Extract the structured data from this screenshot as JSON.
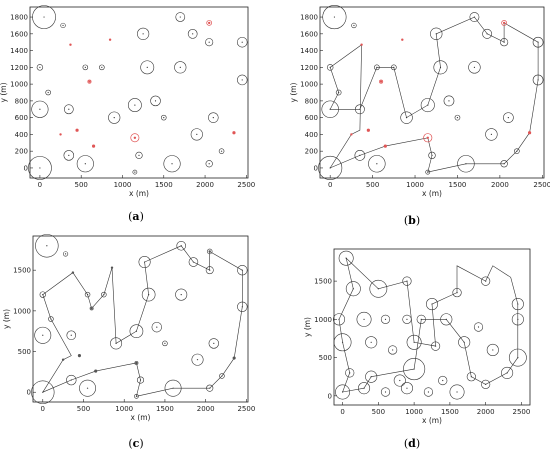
{
  "chart_data": [
    {
      "type": "scatter",
      "panel": "(a)",
      "panel_letter": "a",
      "xlabel": "x (m)",
      "ylabel": "y (m)",
      "xlim": [
        -120,
        2520
      ],
      "ylim": [
        -120,
        1920
      ],
      "xticks": [
        0,
        500,
        1000,
        1500,
        2000,
        2500
      ],
      "yticks": [
        0,
        200,
        400,
        600,
        800,
        1000,
        1200,
        1400,
        1600,
        1800
      ],
      "grid": false,
      "circle_color": "#333333",
      "highlight_color": "#e05555",
      "circles": [
        [
          50,
          1800,
          140
        ],
        [
          280,
          1700,
          28
        ],
        [
          1700,
          1800,
          55
        ],
        [
          1250,
          1600,
          70
        ],
        [
          1850,
          1600,
          55
        ],
        [
          2050,
          1500,
          45
        ],
        [
          2450,
          1500,
          60
        ],
        [
          0,
          1200,
          35
        ],
        [
          550,
          1200,
          30
        ],
        [
          750,
          1200,
          30
        ],
        [
          1300,
          1200,
          80
        ],
        [
          1700,
          1200,
          70
        ],
        [
          2450,
          1050,
          60
        ],
        [
          100,
          900,
          30
        ],
        [
          0,
          700,
          100
        ],
        [
          350,
          700,
          55
        ],
        [
          1150,
          750,
          80
        ],
        [
          1400,
          800,
          60
        ],
        [
          900,
          600,
          70
        ],
        [
          2100,
          600,
          60
        ],
        [
          1500,
          600,
          30
        ],
        [
          1900,
          400,
          70
        ],
        [
          350,
          150,
          60
        ],
        [
          1200,
          150,
          40
        ],
        [
          1600,
          50,
          100
        ],
        [
          0,
          0,
          140
        ],
        [
          2050,
          50,
          40
        ],
        [
          2200,
          200,
          30
        ],
        [
          1150,
          -50,
          25
        ],
        [
          550,
          50,
          100
        ]
      ],
      "highlights": [
        [
          2050,
          1730,
          30
        ],
        [
          370,
          1470,
          0
        ],
        [
          850,
          1530,
          0
        ],
        [
          600,
          1030,
          20
        ],
        [
          1150,
          360,
          50
        ],
        [
          450,
          450,
          15
        ],
        [
          650,
          260,
          15
        ],
        [
          2350,
          420,
          15
        ],
        [
          250,
          400,
          0
        ]
      ]
    },
    {
      "type": "line",
      "panel": "(b)",
      "panel_letter": "b",
      "xlabel": "x (m)",
      "ylabel": "y (m)",
      "xlim": [
        -120,
        2520
      ],
      "ylim": [
        -120,
        1920
      ],
      "xticks": [
        0,
        500,
        1000,
        1500,
        2000,
        2500
      ],
      "yticks": [
        0,
        200,
        400,
        600,
        800,
        1000,
        1200,
        1400,
        1600,
        1800
      ],
      "grid": false,
      "circle_color": "#333333",
      "highlight_color": "#e05555",
      "line_color": "#333333",
      "circles": [
        [
          50,
          1800,
          140
        ],
        [
          280,
          1700,
          28
        ],
        [
          1700,
          1800,
          55
        ],
        [
          1250,
          1600,
          70
        ],
        [
          1850,
          1600,
          55
        ],
        [
          2050,
          1500,
          45
        ],
        [
          2450,
          1500,
          60
        ],
        [
          0,
          1200,
          35
        ],
        [
          550,
          1200,
          30
        ],
        [
          750,
          1200,
          30
        ],
        [
          1300,
          1200,
          80
        ],
        [
          1700,
          1200,
          70
        ],
        [
          2450,
          1050,
          60
        ],
        [
          100,
          900,
          30
        ],
        [
          0,
          700,
          100
        ],
        [
          350,
          700,
          55
        ],
        [
          1150,
          750,
          80
        ],
        [
          1400,
          800,
          60
        ],
        [
          900,
          600,
          70
        ],
        [
          2100,
          600,
          60
        ],
        [
          1500,
          600,
          30
        ],
        [
          1900,
          400,
          70
        ],
        [
          350,
          150,
          60
        ],
        [
          1200,
          150,
          40
        ],
        [
          1600,
          50,
          100
        ],
        [
          0,
          0,
          140
        ],
        [
          2050,
          50,
          40
        ],
        [
          2200,
          200,
          30
        ],
        [
          1150,
          -50,
          25
        ],
        [
          550,
          50,
          100
        ]
      ],
      "highlights": [
        [
          2050,
          1730,
          30
        ],
        [
          370,
          1470,
          0
        ],
        [
          850,
          1530,
          0
        ],
        [
          600,
          1030,
          20
        ],
        [
          1150,
          360,
          50
        ],
        [
          450,
          450,
          15
        ],
        [
          650,
          260,
          15
        ],
        [
          2350,
          420,
          15
        ],
        [
          250,
          400,
          0
        ]
      ],
      "path": [
        [
          0,
          0
        ],
        [
          250,
          400
        ],
        [
          350,
          450
        ],
        [
          370,
          1470
        ],
        [
          0,
          1200
        ],
        [
          100,
          900
        ],
        [
          0,
          700
        ],
        [
          350,
          700
        ],
        [
          550,
          1200
        ],
        [
          750,
          1200
        ],
        [
          900,
          600
        ],
        [
          1150,
          750
        ],
        [
          1300,
          1200
        ],
        [
          1250,
          1600
        ],
        [
          1700,
          1800
        ],
        [
          1850,
          1600
        ],
        [
          2050,
          1500
        ],
        [
          2050,
          1730
        ],
        [
          2450,
          1500
        ],
        [
          2450,
          1050
        ],
        [
          2350,
          420
        ],
        [
          2200,
          200
        ],
        [
          2050,
          50
        ],
        [
          1600,
          50
        ],
        [
          1150,
          -50
        ],
        [
          1200,
          150
        ],
        [
          1150,
          360
        ],
        [
          650,
          260
        ],
        [
          350,
          150
        ],
        [
          0,
          0
        ]
      ]
    },
    {
      "type": "line",
      "panel": "(c)",
      "panel_letter": "c",
      "xlabel": "x (m)",
      "ylabel": "y (m)",
      "xlim": [
        -120,
        2520
      ],
      "ylim": [
        -120,
        1920
      ],
      "xticks": [
        0,
        500,
        1000,
        1500,
        2000,
        2500
      ],
      "yticks": [
        0,
        500,
        1000,
        1500
      ],
      "grid": false,
      "circle_color": "#333333",
      "highlight_color": "#555555",
      "line_color": "#333333",
      "circles": [
        [
          50,
          1800,
          140
        ],
        [
          280,
          1700,
          28
        ],
        [
          1700,
          1800,
          55
        ],
        [
          1250,
          1600,
          70
        ],
        [
          1850,
          1600,
          55
        ],
        [
          2050,
          1500,
          45
        ],
        [
          2450,
          1500,
          60
        ],
        [
          0,
          1200,
          35
        ],
        [
          550,
          1200,
          30
        ],
        [
          750,
          1200,
          30
        ],
        [
          1300,
          1200,
          80
        ],
        [
          1700,
          1200,
          70
        ],
        [
          2450,
          1050,
          60
        ],
        [
          100,
          900,
          30
        ],
        [
          0,
          700,
          100
        ],
        [
          350,
          700,
          55
        ],
        [
          1150,
          750,
          80
        ],
        [
          1400,
          800,
          60
        ],
        [
          900,
          600,
          70
        ],
        [
          2100,
          600,
          60
        ],
        [
          1500,
          600,
          30
        ],
        [
          1900,
          400,
          70
        ],
        [
          350,
          150,
          60
        ],
        [
          1200,
          150,
          40
        ],
        [
          1600,
          50,
          100
        ],
        [
          0,
          0,
          140
        ],
        [
          2050,
          50,
          40
        ],
        [
          2200,
          200,
          30
        ],
        [
          1150,
          -50,
          25
        ],
        [
          550,
          50,
          100
        ]
      ],
      "highlights": [
        [
          2050,
          1730,
          30
        ],
        [
          370,
          1470,
          0
        ],
        [
          850,
          1530,
          0
        ],
        [
          600,
          1030,
          20
        ],
        [
          1150,
          360,
          20
        ],
        [
          450,
          450,
          15
        ],
        [
          650,
          260,
          15
        ],
        [
          2350,
          420,
          15
        ],
        [
          250,
          400,
          0
        ]
      ],
      "path": [
        [
          0,
          0
        ],
        [
          250,
          400
        ],
        [
          350,
          450
        ],
        [
          100,
          900
        ],
        [
          0,
          1200
        ],
        [
          370,
          1470
        ],
        [
          550,
          1200
        ],
        [
          600,
          1030
        ],
        [
          750,
          1200
        ],
        [
          850,
          1530
        ],
        [
          900,
          600
        ],
        [
          1150,
          750
        ],
        [
          1300,
          1200
        ],
        [
          1250,
          1600
        ],
        [
          1700,
          1800
        ],
        [
          1850,
          1600
        ],
        [
          2050,
          1500
        ],
        [
          2050,
          1730
        ],
        [
          2450,
          1500
        ],
        [
          2450,
          1050
        ],
        [
          2350,
          420
        ],
        [
          2200,
          200
        ],
        [
          2050,
          50
        ],
        [
          1600,
          50
        ],
        [
          1150,
          -50
        ],
        [
          1200,
          150
        ],
        [
          1150,
          360
        ],
        [
          650,
          260
        ],
        [
          350,
          150
        ],
        [
          0,
          0
        ]
      ]
    },
    {
      "type": "line",
      "panel": "(d)",
      "panel_letter": "d",
      "xlabel": "x (m)",
      "ylabel": "y (m)",
      "xlim": [
        -120,
        2620
      ],
      "ylim": [
        -120,
        1920
      ],
      "xticks": [
        0,
        500,
        1000,
        1500,
        2000,
        2500
      ],
      "yticks": [
        0,
        500,
        1000,
        1500
      ],
      "grid": false,
      "circle_color": "#333333",
      "line_color": "#333333",
      "circles": [
        [
          50,
          1800,
          100
        ],
        [
          150,
          1400,
          100
        ],
        [
          500,
          1400,
          120
        ],
        [
          900,
          1500,
          60
        ],
        [
          1250,
          1200,
          80
        ],
        [
          1600,
          1350,
          60
        ],
        [
          2000,
          1500,
          60
        ],
        [
          2450,
          1200,
          80
        ],
        [
          -50,
          1000,
          80
        ],
        [
          300,
          1000,
          100
        ],
        [
          600,
          1000,
          60
        ],
        [
          900,
          1000,
          60
        ],
        [
          1100,
          1000,
          60
        ],
        [
          1450,
          1000,
          80
        ],
        [
          1900,
          900,
          60
        ],
        [
          2450,
          1000,
          80
        ],
        [
          0,
          700,
          120
        ],
        [
          400,
          700,
          80
        ],
        [
          700,
          600,
          60
        ],
        [
          1000,
          700,
          100
        ],
        [
          1300,
          650,
          60
        ],
        [
          1700,
          700,
          80
        ],
        [
          2100,
          600,
          80
        ],
        [
          2450,
          500,
          120
        ],
        [
          100,
          300,
          60
        ],
        [
          400,
          250,
          80
        ],
        [
          800,
          200,
          80
        ],
        [
          1000,
          350,
          150
        ],
        [
          1400,
          200,
          60
        ],
        [
          1800,
          250,
          60
        ],
        [
          2300,
          300,
          80
        ],
        [
          0,
          50,
          100
        ],
        [
          300,
          100,
          80
        ],
        [
          600,
          50,
          60
        ],
        [
          900,
          100,
          80
        ],
        [
          1200,
          50,
          60
        ],
        [
          1600,
          50,
          100
        ],
        [
          2000,
          150,
          60
        ]
      ],
      "path": [
        [
          0,
          50
        ],
        [
          100,
          300
        ],
        [
          0,
          700
        ],
        [
          -50,
          1000
        ],
        [
          150,
          1400
        ],
        [
          50,
          1800
        ],
        [
          500,
          1400
        ],
        [
          900,
          1500
        ],
        [
          1000,
          700
        ],
        [
          1300,
          650
        ],
        [
          1250,
          1200
        ],
        [
          1600,
          1350
        ],
        [
          1600,
          1700
        ],
        [
          2000,
          1500
        ],
        [
          2100,
          1700
        ],
        [
          2350,
          1550
        ],
        [
          2450,
          1200
        ],
        [
          2450,
          1000
        ],
        [
          2450,
          500
        ],
        [
          2300,
          300
        ],
        [
          2000,
          150
        ],
        [
          1800,
          250
        ],
        [
          1700,
          700
        ],
        [
          1450,
          1000
        ],
        [
          1100,
          1000
        ],
        [
          1000,
          350
        ],
        [
          400,
          250
        ],
        [
          300,
          100
        ],
        [
          0,
          50
        ]
      ]
    }
  ]
}
